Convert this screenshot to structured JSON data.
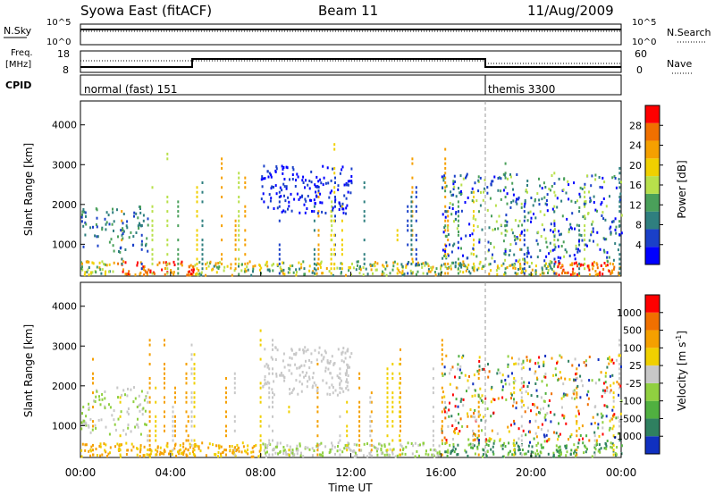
{
  "header": {
    "station": "Syowa East (fitACF)",
    "beam": "Beam 11",
    "date": "11/Aug/2009"
  },
  "top_panel": {
    "left_label_top": "N.Sky",
    "left_label_freq_1": "Freq.",
    "left_label_freq_2": "[MHz]",
    "left_label_cpid": "CPID",
    "right_label_search": "N.Search",
    "right_label_nave": "Nave",
    "nsky_ticks": [
      "10^5",
      "10^0"
    ],
    "nsearch_ticks": [
      "10^5",
      "10^0"
    ],
    "freq_ticks": [
      "18",
      "8"
    ],
    "nave_ticks": [
      "60",
      "0"
    ],
    "cpid_segments": [
      {
        "label": "normal (fast) 151",
        "start_hour": 0
      },
      {
        "label": "themis 3300",
        "start_hour": 18
      }
    ]
  },
  "colors": {
    "power_scale": [
      "#0000ff",
      "#1a40c8",
      "#2f7f7f",
      "#4aa05a",
      "#b8e04b",
      "#f0d000",
      "#f5a000",
      "#f07000",
      "#ff0000"
    ],
    "velocity_scale": [
      "#1030c0",
      "#2f8060",
      "#50b040",
      "#90d040",
      "#c8c8c8",
      "#f0d000",
      "#f5a000",
      "#f07000",
      "#ff0000"
    ]
  },
  "chart_data": [
    {
      "type": "heatmap",
      "panel": "power",
      "ylabel": "Slant Range [km]",
      "yticks": [
        "1000",
        "2000",
        "3000",
        "4000"
      ],
      "ylim": [
        200,
        4600
      ],
      "xlim": [
        0,
        24
      ],
      "colorbar_label": "Power [dB]",
      "colorbar_ticks": [
        "4",
        "8",
        "12",
        "16",
        "20",
        "24",
        "28"
      ],
      "colorbar_range": [
        0,
        30
      ]
    },
    {
      "type": "heatmap",
      "panel": "velocity",
      "ylabel": "Slant Range [km]",
      "yticks": [
        "1000",
        "2000",
        "3000",
        "4000"
      ],
      "ylim": [
        200,
        4600
      ],
      "xlim": [
        0,
        24
      ],
      "colorbar_label": "Velocity [m s^-1]",
      "colorbar_ticks": [
        "1000",
        "500",
        "100",
        "25",
        "-25",
        "-100",
        "-500",
        "-1000"
      ]
    }
  ],
  "time_axis": {
    "xticks": [
      "00:00",
      "04:00",
      "08:00",
      "12:00",
      "16:00",
      "20:00",
      "00:00"
    ],
    "xtick_hours": [
      0,
      4,
      8,
      12,
      16,
      20,
      24
    ],
    "xlabel": "Time UT"
  }
}
